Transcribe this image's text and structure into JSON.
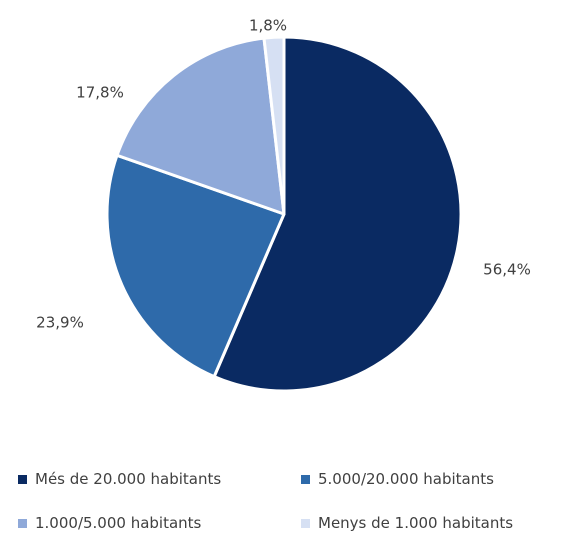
{
  "chart_data": {
    "type": "pie",
    "title": "",
    "slices": [
      {
        "label": "Més de 20.000 habitants",
        "value": 56.4,
        "value_label": "56,4%",
        "color": "#0a2a62"
      },
      {
        "label": "5.000/20.000 habitants",
        "value": 23.9,
        "value_label": "23,9%",
        "color": "#2e6aaa"
      },
      {
        "label": "1.000/5.000 habitants",
        "value": 17.8,
        "value_label": "17,8%",
        "color": "#8fa9d9"
      },
      {
        "label": "Menys de 1.000 habitants",
        "value": 1.8,
        "value_label": "1,8%",
        "color": "#d6e0f3"
      }
    ],
    "start_angle_deg": 0,
    "direction": "clockwise",
    "legend_position": "bottom"
  }
}
